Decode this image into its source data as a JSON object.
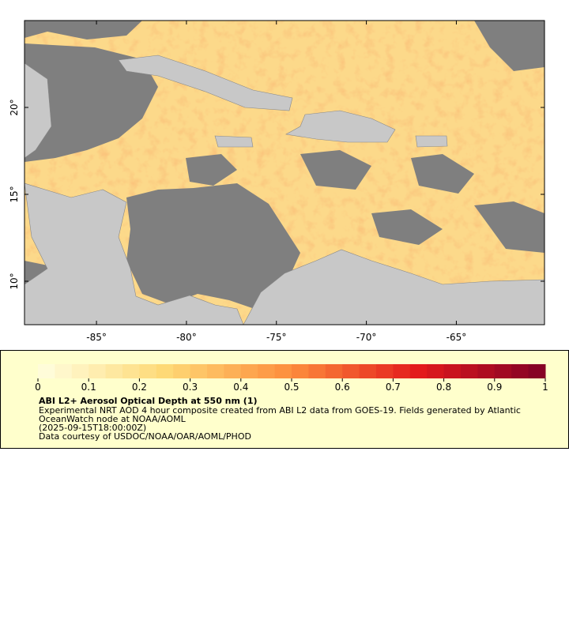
{
  "map": {
    "xlim": [
      -89.0,
      -60.1
    ],
    "ylim": [
      7.5,
      25.0
    ],
    "lon_ticks": [
      {
        "value": -85,
        "label": "-85°"
      },
      {
        "value": -80,
        "label": "-80°"
      },
      {
        "value": -75,
        "label": "-75°"
      },
      {
        "value": -70,
        "label": "-70°"
      },
      {
        "value": -65,
        "label": "-65°"
      }
    ],
    "lat_ticks": [
      {
        "value": 10,
        "label": "10°"
      },
      {
        "value": 15,
        "label": "15°"
      },
      {
        "value": 20,
        "label": "20°"
      }
    ]
  },
  "legend": {
    "colorbar": {
      "range": [
        0,
        1
      ],
      "ticks": [
        0,
        0.1,
        0.2,
        0.3,
        0.4,
        0.5,
        0.6,
        0.7,
        0.8,
        0.9,
        1
      ],
      "colors": [
        "#ffffe0",
        "#fed976",
        "#fd8d3c",
        "#e31a1c",
        "#800026"
      ]
    },
    "title": "ABI L2+ Aerosol Optical Depth at 550 nm (1)",
    "description": "Experimental NRT AOD 4 hour composite created from ABI L2 data from GOES-19. Fields generated by Atlantic OceanWatch node at NOAA/AOML",
    "time": "(2025-09-15T18:00:00Z)",
    "credit": "Data courtesy of USDOC/NOAA/OAR/AOML/PHOD"
  }
}
